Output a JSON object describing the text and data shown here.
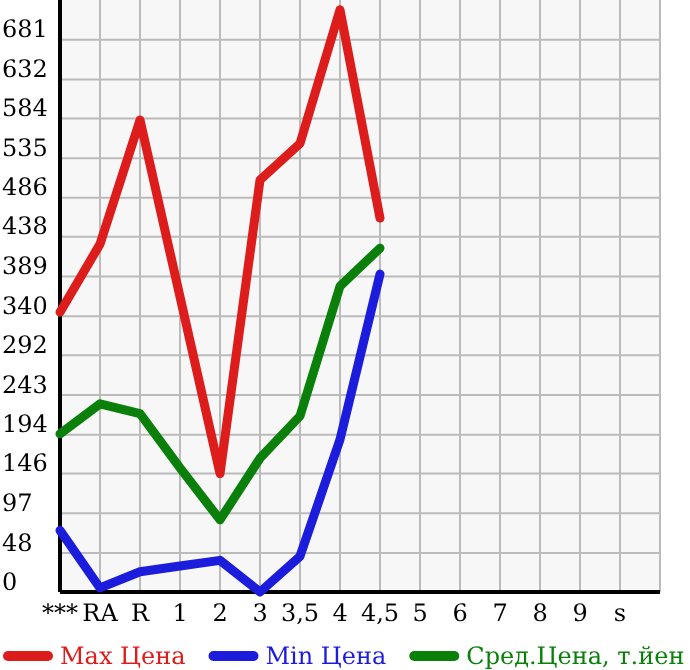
{
  "chart_data": {
    "type": "line",
    "categories": [
      "***",
      "RA",
      "R",
      "1",
      "2",
      "3",
      "3,5",
      "4",
      "4,5",
      "5",
      "6",
      "7",
      "8",
      "9",
      "s"
    ],
    "series": [
      {
        "name": "Max Цена",
        "color": "#dd1c1c",
        "values": [
          345,
          429,
          582,
          364,
          146,
          508,
          553,
          718,
          461,
          null,
          null,
          null,
          null,
          null,
          null
        ]
      },
      {
        "name": "Min Цена",
        "color": "#1c1cdd",
        "values": [
          76,
          5,
          25,
          32,
          39,
          0,
          44,
          188,
          392,
          null,
          null,
          null,
          null,
          null,
          null
        ]
      },
      {
        "name": "Сред.Цена, т.йен",
        "color": "#0a800a",
        "values": [
          195,
          232,
          220,
          153,
          89,
          165,
          217,
          377,
          424,
          null,
          null,
          null,
          null,
          null,
          null
        ]
      }
    ],
    "ylim": [
      0,
      730
    ],
    "yticks": [
      0,
      48,
      97,
      146,
      194,
      243,
      292,
      340,
      389,
      438,
      486,
      535,
      584,
      632,
      681
    ],
    "grid": true,
    "legend": "bottom",
    "marker": "none",
    "line_style": "solid"
  }
}
